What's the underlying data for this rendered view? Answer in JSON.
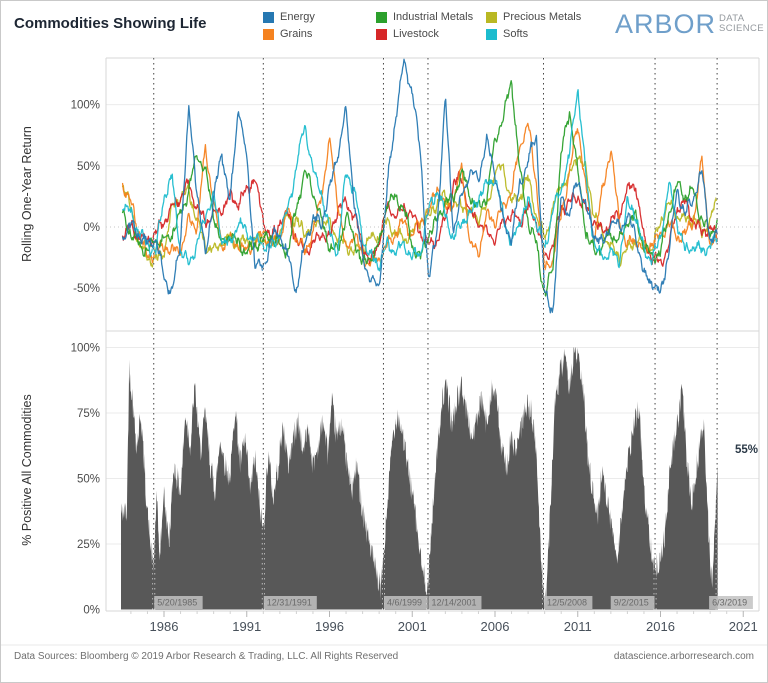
{
  "header": {
    "title": "Commodities Showing Life"
  },
  "logo": {
    "brand": "ARBOR",
    "sub_top": "DATA",
    "sub_bottom": "SCIENCE"
  },
  "footer": {
    "left": "Data Sources: Bloomberg © 2019 Arbor Research & Trading, LLC. All Rights Reserved",
    "right": "datascience.arborresearch.com"
  },
  "legend": {
    "items": [
      {
        "label": "Energy",
        "color": "#2678b2"
      },
      {
        "label": "Grains",
        "color": "#f5821f"
      },
      {
        "label": "Industrial Metals",
        "color": "#2ca02c"
      },
      {
        "label": "Livestock",
        "color": "#d62728"
      },
      {
        "label": "Precious Metals",
        "color": "#b9b823"
      },
      {
        "label": "Softs",
        "color": "#1cbcce"
      }
    ]
  },
  "chart_data": [
    {
      "type": "line",
      "ylabel": "Rolling One-Year Return",
      "yticks": [
        100,
        50,
        0,
        -50
      ],
      "ylim": [
        -85,
        138
      ],
      "xticks": [
        1986,
        1991,
        1996,
        2001,
        2006,
        2011,
        2016,
        2021
      ],
      "xlim": [
        1982.5,
        2022.0
      ],
      "grid": "horizontal",
      "x": [
        1983.5,
        1984,
        1984.5,
        1985,
        1985.5,
        1986,
        1986.5,
        1987,
        1987.5,
        1988,
        1988.5,
        1989,
        1989.5,
        1990,
        1990.5,
        1991,
        1991.5,
        1992,
        1992.5,
        1993,
        1993.5,
        1994,
        1994.5,
        1995,
        1995.5,
        1996,
        1996.5,
        1997,
        1997.5,
        1998,
        1998.5,
        1999,
        1999.5,
        2000,
        2000.5,
        2001,
        2001.5,
        2002,
        2002.5,
        2003,
        2003.5,
        2004,
        2004.5,
        2005,
        2005.5,
        2006,
        2006.5,
        2007,
        2007.5,
        2008,
        2008.5,
        2009,
        2009.5,
        2010,
        2010.5,
        2011,
        2011.5,
        2012,
        2012.5,
        2013,
        2013.5,
        2014,
        2014.5,
        2015,
        2015.5,
        2016,
        2016.5,
        2017,
        2017.5,
        2018,
        2018.5,
        2019,
        2019.45
      ],
      "series": [
        {
          "name": "Energy",
          "color": "#2678b2",
          "values": [
            -8,
            2,
            -6,
            -14,
            -10,
            -40,
            -55,
            -10,
            95,
            30,
            -25,
            25,
            60,
            20,
            100,
            55,
            -30,
            -35,
            -8,
            -5,
            -25,
            -52,
            -15,
            8,
            2,
            30,
            60,
            95,
            20,
            -25,
            -45,
            -50,
            35,
            90,
            135,
            110,
            60,
            -45,
            0,
            105,
            -5,
            25,
            45,
            40,
            70,
            45,
            5,
            -10,
            35,
            55,
            75,
            -55,
            -68,
            25,
            10,
            40,
            15,
            -5,
            -15,
            5,
            0,
            8,
            -5,
            -40,
            -45,
            -55,
            -20,
            30,
            10,
            25,
            45,
            -10,
            -8
          ]
        },
        {
          "name": "Grains",
          "color": "#f5821f",
          "values": [
            35,
            20,
            -5,
            -25,
            -20,
            -15,
            -20,
            -18,
            5,
            0,
            65,
            20,
            -15,
            -10,
            -15,
            -20,
            -12,
            -5,
            -15,
            -8,
            15,
            -10,
            -20,
            -5,
            25,
            70,
            20,
            -20,
            -5,
            -25,
            -30,
            -25,
            -15,
            -5,
            5,
            -8,
            5,
            10,
            35,
            15,
            20,
            50,
            -15,
            -20,
            10,
            5,
            15,
            30,
            65,
            85,
            35,
            -35,
            -25,
            10,
            45,
            85,
            30,
            -10,
            30,
            65,
            5,
            -15,
            -10,
            -20,
            -12,
            -8,
            5,
            -10,
            -5,
            5,
            55,
            -15,
            -12
          ]
        },
        {
          "name": "Industrial Metals",
          "color": "#2ca02c",
          "values": [
            10,
            -5,
            -15,
            -20,
            -10,
            -12,
            -5,
            10,
            30,
            60,
            45,
            10,
            -15,
            -5,
            -15,
            -20,
            -15,
            -10,
            -8,
            -15,
            -20,
            15,
            45,
            30,
            5,
            -15,
            -20,
            10,
            -10,
            -30,
            -25,
            -15,
            20,
            25,
            15,
            -15,
            -25,
            -5,
            5,
            20,
            25,
            45,
            25,
            15,
            25,
            70,
            90,
            120,
            45,
            5,
            -15,
            -55,
            -35,
            60,
            95,
            45,
            -5,
            -20,
            -15,
            -5,
            -12,
            5,
            8,
            -15,
            -25,
            -20,
            10,
            35,
            25,
            30,
            5,
            -5,
            3
          ]
        },
        {
          "name": "Livestock",
          "color": "#d62728",
          "values": [
            -5,
            0,
            -8,
            -12,
            -5,
            5,
            15,
            25,
            35,
            15,
            5,
            10,
            15,
            25,
            20,
            30,
            40,
            5,
            -10,
            5,
            10,
            -10,
            -20,
            -15,
            -5,
            -10,
            15,
            20,
            10,
            -15,
            -30,
            -10,
            15,
            10,
            15,
            10,
            -5,
            -15,
            -10,
            5,
            35,
            40,
            10,
            5,
            -5,
            -10,
            5,
            10,
            5,
            15,
            5,
            -25,
            -15,
            15,
            20,
            25,
            15,
            5,
            -5,
            5,
            10,
            30,
            35,
            -10,
            -25,
            -30,
            -15,
            15,
            20,
            5,
            -5,
            0,
            -10
          ]
        },
        {
          "name": "Precious Metals",
          "color": "#b9b823",
          "values": [
            35,
            15,
            -15,
            -25,
            -28,
            -20,
            15,
            25,
            30,
            5,
            -15,
            -20,
            -12,
            -8,
            -15,
            -10,
            -12,
            -8,
            -15,
            -5,
            10,
            5,
            -5,
            0,
            5,
            2,
            -8,
            -15,
            -20,
            -15,
            -10,
            -8,
            5,
            -5,
            -10,
            -5,
            5,
            10,
            20,
            25,
            15,
            20,
            10,
            8,
            15,
            45,
            50,
            20,
            25,
            40,
            10,
            -10,
            15,
            35,
            40,
            60,
            45,
            10,
            -5,
            -15,
            -25,
            -20,
            -10,
            -15,
            -18,
            5,
            20,
            10,
            5,
            8,
            -5,
            5,
            25
          ]
        },
        {
          "name": "Softs",
          "color": "#1cbcce",
          "values": [
            20,
            10,
            -5,
            -15,
            -20,
            25,
            40,
            -20,
            -30,
            -15,
            10,
            25,
            -10,
            -15,
            5,
            -5,
            -10,
            -15,
            -18,
            -5,
            15,
            50,
            85,
            45,
            30,
            -5,
            -20,
            45,
            30,
            -10,
            -25,
            -30,
            -15,
            -20,
            -15,
            -25,
            -20,
            15,
            30,
            10,
            -10,
            5,
            10,
            25,
            35,
            40,
            10,
            -15,
            5,
            20,
            5,
            -20,
            15,
            30,
            60,
            115,
            40,
            -15,
            -25,
            -20,
            -28,
            20,
            10,
            -20,
            -25,
            -10,
            35,
            5,
            -20,
            -15,
            -20,
            -15,
            -10
          ]
        }
      ]
    },
    {
      "type": "bar",
      "ylabel": "% Positive All Commodities",
      "yticks": [
        0,
        25,
        50,
        75,
        100
      ],
      "ylim": [
        0,
        105
      ],
      "bar_color": "#585858",
      "grid": "horizontal",
      "annotation": {
        "text": "55%"
      },
      "last_value": 55,
      "points": [
        [
          1983.4,
          37
        ],
        [
          1983.75,
          37
        ],
        [
          1983.9,
          92
        ],
        [
          1984.1,
          80
        ],
        [
          1984.35,
          62
        ],
        [
          1984.6,
          75
        ],
        [
          1984.9,
          45
        ],
        [
          1985.1,
          30
        ],
        [
          1985.35,
          15
        ],
        [
          1985.55,
          42
        ],
        [
          1985.75,
          20
        ],
        [
          1986.0,
          45
        ],
        [
          1986.3,
          25
        ],
        [
          1986.6,
          55
        ],
        [
          1987.0,
          45
        ],
        [
          1987.3,
          75
        ],
        [
          1987.6,
          62
        ],
        [
          1987.85,
          85
        ],
        [
          1988.2,
          60
        ],
        [
          1988.5,
          75
        ],
        [
          1988.8,
          55
        ],
        [
          1989.1,
          45
        ],
        [
          1989.4,
          65
        ],
        [
          1989.7,
          55
        ],
        [
          1990.0,
          50
        ],
        [
          1990.3,
          78
        ],
        [
          1990.6,
          55
        ],
        [
          1990.9,
          65
        ],
        [
          1991.2,
          45
        ],
        [
          1991.5,
          58
        ],
        [
          1991.8,
          38
        ],
        [
          1992.0,
          30
        ],
        [
          1992.3,
          60
        ],
        [
          1992.6,
          42
        ],
        [
          1992.9,
          55
        ],
        [
          1993.2,
          70
        ],
        [
          1993.5,
          55
        ],
        [
          1993.8,
          65
        ],
        [
          1994.1,
          72
        ],
        [
          1994.4,
          60
        ],
        [
          1994.7,
          70
        ],
        [
          1995.0,
          55
        ],
        [
          1995.3,
          62
        ],
        [
          1995.6,
          72
        ],
        [
          1995.9,
          60
        ],
        [
          1996.15,
          78
        ],
        [
          1996.45,
          65
        ],
        [
          1996.75,
          72
        ],
        [
          1997.05,
          55
        ],
        [
          1997.35,
          45
        ],
        [
          1997.65,
          55
        ],
        [
          1997.95,
          40
        ],
        [
          1998.25,
          30
        ],
        [
          1998.55,
          22
        ],
        [
          1998.85,
          12
        ],
        [
          1999.1,
          8
        ],
        [
          1999.3,
          22
        ],
        [
          1999.55,
          45
        ],
        [
          1999.8,
          65
        ],
        [
          2000.1,
          75
        ],
        [
          2000.4,
          68
        ],
        [
          2000.7,
          55
        ],
        [
          2001.0,
          45
        ],
        [
          2001.3,
          30
        ],
        [
          2001.6,
          15
        ],
        [
          2001.95,
          8
        ],
        [
          2002.2,
          35
        ],
        [
          2002.5,
          60
        ],
        [
          2002.8,
          80
        ],
        [
          2003.1,
          85
        ],
        [
          2003.4,
          70
        ],
        [
          2003.7,
          80
        ],
        [
          2004.0,
          85
        ],
        [
          2004.3,
          75
        ],
        [
          2004.6,
          65
        ],
        [
          2004.9,
          72
        ],
        [
          2005.2,
          80
        ],
        [
          2005.5,
          70
        ],
        [
          2005.8,
          85
        ],
        [
          2006.1,
          80
        ],
        [
          2006.4,
          60
        ],
        [
          2006.7,
          55
        ],
        [
          2007.0,
          65
        ],
        [
          2007.3,
          60
        ],
        [
          2007.6,
          70
        ],
        [
          2007.9,
          78
        ],
        [
          2008.2,
          75
        ],
        [
          2008.5,
          60
        ],
        [
          2008.7,
          30
        ],
        [
          2008.93,
          6
        ],
        [
          2009.1,
          5
        ],
        [
          2009.35,
          40
        ],
        [
          2009.6,
          75
        ],
        [
          2009.9,
          90
        ],
        [
          2010.2,
          95
        ],
        [
          2010.5,
          85
        ],
        [
          2010.8,
          100
        ],
        [
          2011.05,
          95
        ],
        [
          2011.3,
          85
        ],
        [
          2011.6,
          60
        ],
        [
          2011.9,
          45
        ],
        [
          2012.2,
          35
        ],
        [
          2012.5,
          55
        ],
        [
          2012.8,
          40
        ],
        [
          2013.1,
          30
        ],
        [
          2013.4,
          20
        ],
        [
          2013.7,
          40
        ],
        [
          2014.0,
          55
        ],
        [
          2014.4,
          70
        ],
        [
          2014.7,
          78
        ],
        [
          2015.0,
          45
        ],
        [
          2015.3,
          30
        ],
        [
          2015.67,
          15
        ],
        [
          2016.0,
          20
        ],
        [
          2016.3,
          30
        ],
        [
          2016.6,
          55
        ],
        [
          2017.0,
          70
        ],
        [
          2017.3,
          85
        ],
        [
          2017.6,
          55
        ],
        [
          2017.9,
          40
        ],
        [
          2018.2,
          55
        ],
        [
          2018.6,
          72
        ],
        [
          2018.9,
          30
        ],
        [
          2019.1,
          8
        ],
        [
          2019.3,
          35
        ],
        [
          2019.45,
          55
        ]
      ],
      "events": [
        {
          "label": "5/20/1985",
          "t": 1985.38,
          "align": "left"
        },
        {
          "label": "12/31/1991",
          "t": 1992.0,
          "align": "left"
        },
        {
          "label": "4/6/1999",
          "t": 1999.26,
          "align": "left"
        },
        {
          "label": "12/14/2001",
          "t": 2001.95,
          "align": "left"
        },
        {
          "label": "12/5/2008",
          "t": 2008.93,
          "align": "left"
        },
        {
          "label": "9/2/2015",
          "t": 2015.67,
          "align": "right"
        },
        {
          "label": "6/3/2019",
          "t": 2019.42,
          "align": "center"
        }
      ]
    }
  ]
}
